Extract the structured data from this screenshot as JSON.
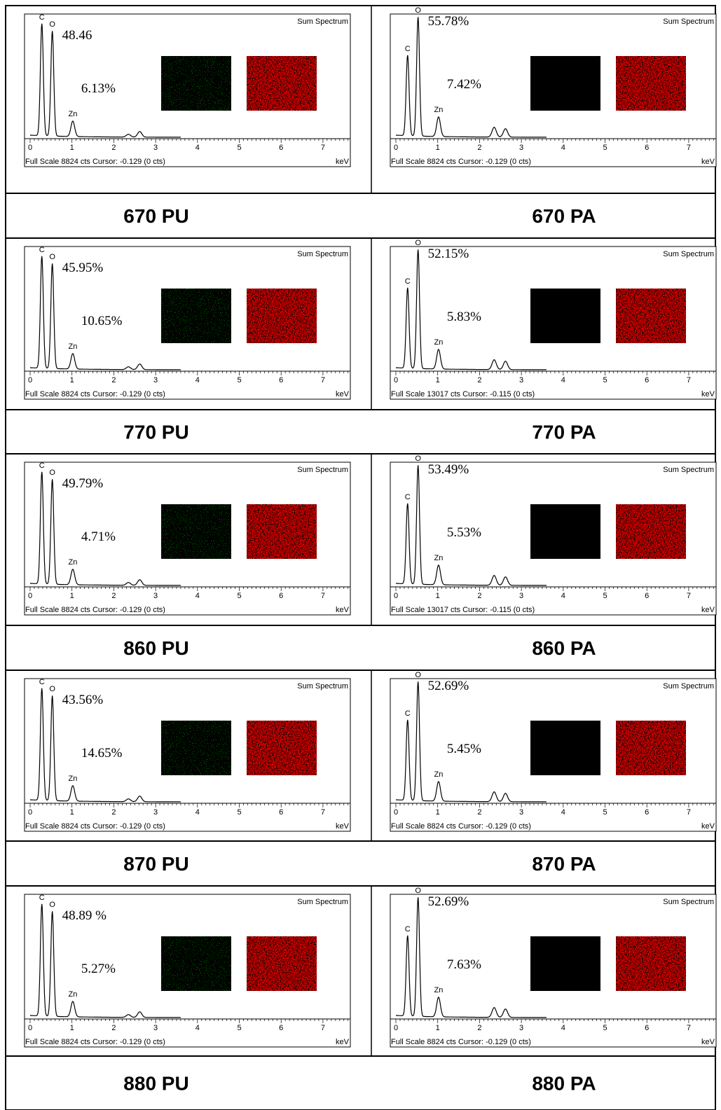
{
  "panels": [
    {
      "caption": "670 PU",
      "spectrum_title": "Sum Spectrum",
      "peak_labels": [
        "C",
        "O",
        "Zn"
      ],
      "o_percent": "48.46",
      "zn_percent": "6.13%",
      "footer": "Full Scale 8824 cts Cursor: -0.129  (0 cts)",
      "unit": "keV",
      "xticks": [
        0,
        1,
        2,
        3,
        4,
        5,
        6,
        7
      ]
    },
    {
      "caption": "670 PA",
      "spectrum_title": "Sum Spectrum",
      "peak_labels": [
        "C",
        "O",
        "Zn"
      ],
      "o_percent": "55.78%",
      "zn_percent": "7.42%",
      "footer": "Full Scale 8824 cts Cursor: -0.129  (0 cts)",
      "unit": "keV",
      "xticks": [
        0,
        1,
        2,
        3,
        4,
        5,
        6,
        7
      ]
    },
    {
      "caption": "770 PU",
      "spectrum_title": "Sum Spectrum",
      "peak_labels": [
        "C",
        "O",
        "Zn"
      ],
      "o_percent": "45.95%",
      "zn_percent": "10.65%",
      "footer": "Full Scale 8824 cts Cursor: -0.129  (0 cts)",
      "unit": "keV",
      "xticks": [
        0,
        1,
        2,
        3,
        4,
        5,
        6,
        7
      ]
    },
    {
      "caption": "770 PA",
      "spectrum_title": "Sum Spectrum",
      "peak_labels": [
        "C",
        "O",
        "Zn"
      ],
      "o_percent": "52.15%",
      "zn_percent": "5.83%",
      "footer": "Full Scale 13017 cts Cursor: -0.115  (0 cts)",
      "unit": "keV",
      "xticks": [
        0,
        1,
        2,
        3,
        4,
        5,
        6,
        7
      ]
    },
    {
      "caption": "860 PU",
      "spectrum_title": "Sum Spectrum",
      "peak_labels": [
        "C",
        "O",
        "Zn"
      ],
      "o_percent": "49.79%",
      "zn_percent": "4.71%",
      "footer": "Full Scale 8824 cts Cursor: -0.129  (0 cts)",
      "unit": "keV",
      "xticks": [
        0,
        1,
        2,
        3,
        4,
        5,
        6,
        7
      ]
    },
    {
      "caption": "860 PA",
      "spectrum_title": "Sum Spectrum",
      "peak_labels": [
        "C",
        "O",
        "Zn"
      ],
      "o_percent": "53.49%",
      "zn_percent": "5.53%",
      "footer": "Full Scale 13017 cts Cursor: -0.115  (0 cts)",
      "unit": "keV",
      "xticks": [
        0,
        1,
        2,
        3,
        4,
        5,
        6,
        7
      ]
    },
    {
      "caption": "870 PU",
      "spectrum_title": "Sum Spectrum",
      "peak_labels": [
        "C",
        "O",
        "Zn"
      ],
      "o_percent": "43.56%",
      "zn_percent": "14.65%",
      "footer": "Full Scale 8824 cts Cursor: -0.129  (0 cts)",
      "unit": "keV",
      "xticks": [
        0,
        1,
        2,
        3,
        4,
        5,
        6,
        7
      ]
    },
    {
      "caption": "870 PA",
      "spectrum_title": "Sum Spectrum",
      "peak_labels": [
        "C",
        "O",
        "Zn"
      ],
      "o_percent": "52.69%",
      "zn_percent": "5.45%",
      "footer": "Full Scale 8824 cts Cursor: -0.129  (0 cts)",
      "unit": "keV",
      "xticks": [
        0,
        1,
        2,
        3,
        4,
        5,
        6,
        7
      ]
    },
    {
      "caption": "880 PU",
      "spectrum_title": "Sum Spectrum",
      "peak_labels": [
        "C",
        "O",
        "Zn"
      ],
      "o_percent": "48.89 %",
      "zn_percent": "5.27%",
      "footer": "Full Scale 8824 cts Cursor: -0.129  (0 cts)",
      "unit": "keV",
      "xticks": [
        0,
        1,
        2,
        3,
        4,
        5,
        6,
        7
      ]
    },
    {
      "caption": "880 PA",
      "spectrum_title": "Sum Spectrum",
      "peak_labels": [
        "C",
        "O",
        "Zn"
      ],
      "o_percent": "52.69%",
      "zn_percent": "7.63%",
      "footer": "Full Scale 8824 cts Cursor: -0.129  (0 cts)",
      "unit": "keV",
      "xticks": [
        0,
        1,
        2,
        3,
        4,
        5,
        6,
        7
      ]
    }
  ]
}
